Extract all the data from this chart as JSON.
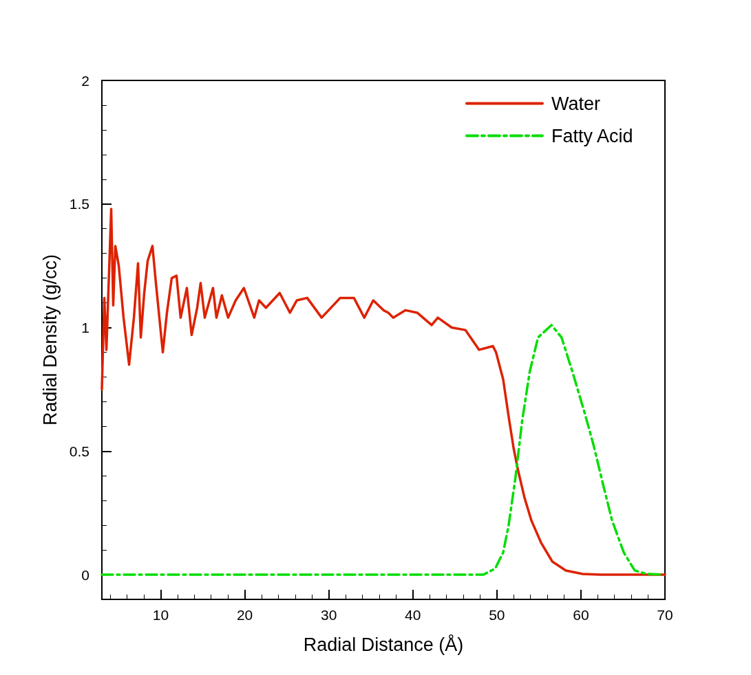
{
  "chart_data": {
    "type": "line",
    "xlabel": "Radial Distance (Å)",
    "ylabel": "Radial Density (g/cc)",
    "xlim": [
      3,
      70
    ],
    "ylim": [
      -0.1,
      2
    ],
    "xticks": [
      {
        "value": 4,
        "label": null
      },
      {
        "value": 6,
        "label": null
      },
      {
        "value": 8,
        "label": null
      },
      10,
      {
        "value": 12,
        "label": null
      },
      {
        "value": 14,
        "label": null
      },
      {
        "value": 16,
        "label": null
      },
      {
        "value": 18,
        "label": null
      },
      20,
      {
        "value": 22,
        "label": null
      },
      {
        "value": 24,
        "label": null
      },
      {
        "value": 26,
        "label": null
      },
      {
        "value": 28,
        "label": null
      },
      30,
      {
        "value": 32,
        "label": null
      },
      {
        "value": 34,
        "label": null
      },
      {
        "value": 36,
        "label": null
      },
      {
        "value": 38,
        "label": null
      },
      40,
      {
        "value": 42,
        "label": null
      },
      {
        "value": 44,
        "label": null
      },
      {
        "value": 46,
        "label": null
      },
      {
        "value": 48,
        "label": null
      },
      50,
      {
        "value": 52,
        "label": null
      },
      {
        "value": 54,
        "label": null
      },
      {
        "value": 56,
        "label": null
      },
      {
        "value": 58,
        "label": null
      },
      60,
      {
        "value": 62,
        "label": null
      },
      {
        "value": 64,
        "label": null
      },
      {
        "value": 66,
        "label": null
      },
      {
        "value": 68,
        "label": null
      },
      70
    ],
    "yticks": [
      {
        "value": -0.1,
        "label": null
      },
      0,
      {
        "value": 0.1,
        "label": null
      },
      {
        "value": 0.2,
        "label": null
      },
      {
        "value": 0.3,
        "label": null
      },
      {
        "value": 0.4,
        "label": null
      },
      0.5,
      {
        "value": 0.6,
        "label": null
      },
      {
        "value": 0.7,
        "label": null
      },
      {
        "value": 0.8,
        "label": null
      },
      {
        "value": 0.9,
        "label": null
      },
      1,
      {
        "value": 1.1,
        "label": null
      },
      {
        "value": 1.2,
        "label": null
      },
      {
        "value": 1.3,
        "label": null
      },
      {
        "value": 1.4,
        "label": null
      },
      1.5,
      {
        "value": 1.6,
        "label": null
      },
      {
        "value": 1.7,
        "label": null
      },
      {
        "value": 1.8,
        "label": null
      },
      {
        "value": 1.9,
        "label": null
      },
      2
    ],
    "grid": false,
    "legend": "top right",
    "marker": "none",
    "series": [
      {
        "name": "Water",
        "color": "#dd2200",
        "line_style": "solid",
        "x": [
          3.0,
          3.29,
          3.54,
          4.11,
          4.35,
          4.6,
          5.01,
          5.58,
          6.24,
          6.81,
          7.3,
          7.63,
          8.04,
          8.45,
          9.02,
          9.43,
          10.25,
          10.74,
          11.31,
          11.88,
          12.37,
          13.11,
          13.68,
          14.34,
          14.75,
          15.24,
          16.22,
          16.63,
          17.28,
          18.02,
          18.92,
          19.9,
          21.13,
          21.7,
          22.52,
          24.16,
          25.38,
          26.2,
          27.43,
          29.15,
          31.36,
          32.99,
          34.22,
          35.29,
          36.51,
          37.09,
          37.66,
          39.13,
          40.52,
          42.24,
          42.98,
          44.62,
          46.25,
          47.89,
          49.53,
          49.9,
          50.75,
          51.4,
          52.0,
          52.5,
          53.3,
          54.1,
          55.25,
          56.6,
          58.2,
          60.2,
          62.3,
          66,
          70
        ],
        "values": [
          0.75,
          1.12,
          0.91,
          1.48,
          1.09,
          1.33,
          1.25,
          1.04,
          0.85,
          1.04,
          1.26,
          0.96,
          1.14,
          1.27,
          1.33,
          1.18,
          0.9,
          1.06,
          1.2,
          1.21,
          1.04,
          1.16,
          0.97,
          1.08,
          1.18,
          1.04,
          1.16,
          1.04,
          1.13,
          1.04,
          1.11,
          1.16,
          1.04,
          1.11,
          1.08,
          1.14,
          1.06,
          1.11,
          1.12,
          1.04,
          1.12,
          1.12,
          1.04,
          1.11,
          1.07,
          1.06,
          1.04,
          1.07,
          1.06,
          1.01,
          1.04,
          1.0,
          0.99,
          0.91,
          0.925,
          0.9,
          0.79,
          0.64,
          0.51,
          0.425,
          0.31,
          0.22,
          0.13,
          0.053,
          0.017,
          0.003,
          0,
          0,
          0
        ]
      },
      {
        "name": "Fatty Acid",
        "color": "#00dd00",
        "line_style": "dashed",
        "x": [
          3,
          20,
          40,
          48.4,
          49.8,
          50.75,
          51.4,
          52.2,
          53.0,
          53.9,
          54.9,
          56.5,
          57.7,
          59.0,
          60.4,
          61.5,
          62.6,
          63.7,
          65.1,
          66.4,
          67.8,
          69.7
        ],
        "values": [
          0,
          0,
          0,
          0,
          0.025,
          0.09,
          0.2,
          0.39,
          0.62,
          0.82,
          0.96,
          1.01,
          0.96,
          0.82,
          0.66,
          0.525,
          0.37,
          0.22,
          0.09,
          0.017,
          0.003,
          0
        ]
      }
    ]
  }
}
